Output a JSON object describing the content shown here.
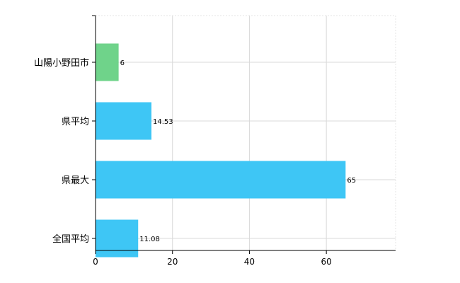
{
  "chart_data": {
    "type": "bar",
    "orientation": "horizontal",
    "categories": [
      "山陽小野田市",
      "県平均",
      "県最大",
      "全国平均"
    ],
    "values": [
      6,
      14.53,
      65,
      11.08
    ],
    "value_labels": [
      "6",
      "14.53",
      "65",
      "11.08"
    ],
    "bar_colors": [
      "#6fd38a",
      "#3ec6f5",
      "#3ec6f5",
      "#3ec6f5"
    ],
    "xlim": [
      0,
      78
    ],
    "xticks": [
      0,
      20,
      40,
      60
    ],
    "xtick_labels": [
      "0",
      "20",
      "40",
      "60"
    ],
    "grid": true,
    "title": "",
    "xlabel": "",
    "ylabel": ""
  }
}
